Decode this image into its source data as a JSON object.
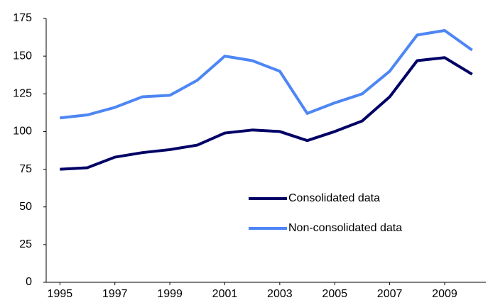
{
  "chart_data": {
    "type": "line",
    "x": [
      1995,
      1996,
      1997,
      1998,
      1999,
      2000,
      2001,
      2002,
      2003,
      2004,
      2005,
      2006,
      2007,
      2008,
      2009,
      2010
    ],
    "series": [
      {
        "name": "Consolidated data",
        "color": "#000066",
        "values": [
          75,
          76,
          83,
          86,
          88,
          91,
          99,
          101,
          100,
          94,
          100,
          107,
          123,
          147,
          149,
          138
        ]
      },
      {
        "name": "Non-consolidated data",
        "color": "#4d86f5",
        "values": [
          109,
          111,
          116,
          123,
          124,
          134,
          150,
          147,
          140,
          112,
          119,
          125,
          140,
          164,
          167,
          154
        ]
      }
    ],
    "xlim": [
      1994.5,
      2010.5
    ],
    "xticks": [
      1995,
      1997,
      1999,
      2001,
      2003,
      2005,
      2007,
      2009
    ],
    "ylim": [
      0,
      175
    ],
    "yticks": [
      0,
      25,
      50,
      75,
      100,
      125,
      150,
      175
    ],
    "grid": false,
    "legend": "center-right"
  }
}
